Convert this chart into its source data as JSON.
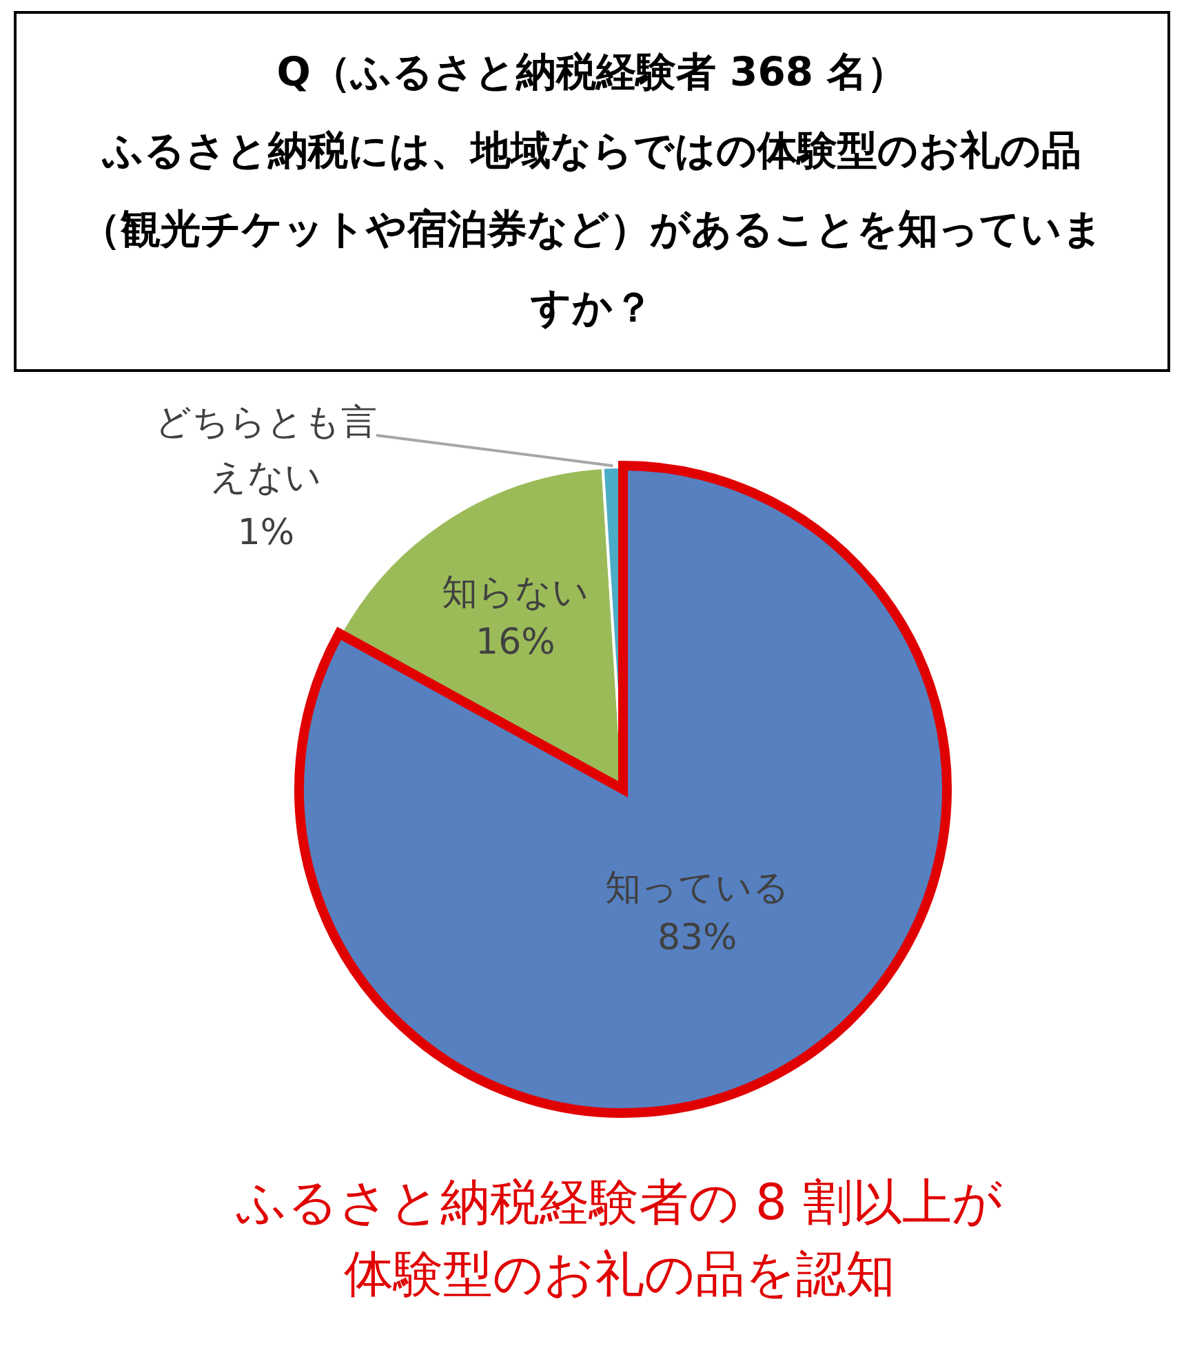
{
  "chart_data": {
    "type": "pie",
    "title": "Q（ふるさと納税経験者 368 名）",
    "subtitle": "ふるさと納税には、地域ならではの体験型のお礼の品（観光チケットや宿泊券など）があることを知っていますか？",
    "categories": [
      "知っている",
      "知らない",
      "どちらとも言えない"
    ],
    "values": [
      83,
      16,
      1
    ],
    "colors": [
      "#5680c0",
      "#9bbb59",
      "#4bacc6"
    ],
    "value_labels": [
      "83%",
      "16%",
      "1%"
    ],
    "annotations": [
      "ふるさと納税経験者の 8 割以上が体験型のお礼の品を認知"
    ]
  }
}
